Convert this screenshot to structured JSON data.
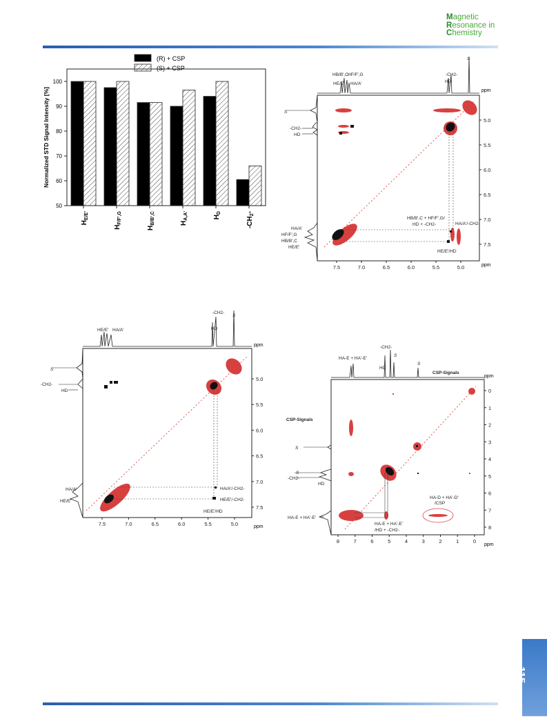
{
  "logo": {
    "line1": "Magnetic",
    "line2": "Resonance in",
    "line3": "Chemistry",
    "initials": [
      "M",
      "R",
      "C"
    ],
    "rest": [
      "agnetic",
      "esonance in",
      "hemistry"
    ]
  },
  "page_number": "115",
  "chart_data": [
    {
      "type": "bar",
      "title": "",
      "ylabel": "Normalized STD Signal Intensity [%]",
      "xlabel": "",
      "ylim": [
        50,
        105
      ],
      "yticks": [
        50,
        60,
        70,
        80,
        90,
        100
      ],
      "categories": [
        "H_E/E'",
        "H_F/F',G",
        "H_B/B',C",
        "H_A,A'",
        "H_D",
        "-CH2-"
      ],
      "category_labels": [
        {
          "main": "H",
          "sub": "E/E'"
        },
        {
          "main": "H",
          "sub": "F/F',G"
        },
        {
          "main": "H",
          "sub": "B/B',C"
        },
        {
          "main": "H",
          "sub": "A,A'"
        },
        {
          "main": "H",
          "sub": "D"
        },
        {
          "main": "-CH",
          "sub": "2",
          "tail": "-"
        }
      ],
      "legend_position": "top-center",
      "series": [
        {
          "name": "(R) + CSP",
          "fill": "#000000",
          "values": [
            100,
            97.5,
            91.5,
            90,
            94,
            60.5
          ]
        },
        {
          "name": "(S) + CSP",
          "fill": "hatched",
          "values": [
            100,
            100,
            91.5,
            96.5,
            100,
            66
          ]
        }
      ]
    }
  ],
  "nmr_top_right": {
    "axis_label": "ppm",
    "xticks": [
      "7.5",
      "7.0",
      "6.5",
      "6.0",
      "5.5",
      "5.0"
    ],
    "yticks": [
      "5.0",
      "5.5",
      "6.0",
      "6.5",
      "7.0",
      "7.5"
    ],
    "top_labels": [
      "S",
      "-CH2-",
      "HD",
      "HB/B',C",
      "HF/F',G",
      "HE/E'",
      "HA/A'"
    ],
    "left_labels": [
      "S",
      "-CH2-",
      "HD",
      "HA/A'",
      "HF/F',G",
      "HB/B',C",
      "HE/E'"
    ],
    "cross_labels": [
      "HB/B',C + HF/F',G/",
      "HD + -CH2-",
      "HA/A'/-CH2-",
      "HE/E'/HD"
    ]
  },
  "nmr_bottom_left": {
    "axis_label": "ppm",
    "xticks": [
      "7.5",
      "7.0",
      "6.5",
      "6.0",
      "5.5",
      "5.0"
    ],
    "yticks": [
      "5.0",
      "5.5",
      "6.0",
      "6.5",
      "7.0",
      "7.5"
    ],
    "top_labels": [
      "-CH2-",
      "S",
      "HD",
      "HE/E'",
      "HA/A'"
    ],
    "left_labels": [
      "S",
      "-CH2-",
      "HD",
      "HA/A'",
      "HE/E'"
    ],
    "cross_labels": [
      "HA/A'/-CH2-",
      "HE/E'/-CH2-",
      "HE/E'/HD"
    ]
  },
  "nmr_bottom_right": {
    "axis_label": "ppm",
    "xticks": [
      "8",
      "7",
      "6",
      "5",
      "4",
      "3",
      "2",
      "1",
      "0"
    ],
    "yticks": [
      "0",
      "1",
      "2",
      "3",
      "4",
      "5",
      "6",
      "7",
      "8"
    ],
    "top_labels": [
      "-CH2-",
      "S",
      "HA-E + HA'-E'",
      "HD",
      "S",
      "CSP-Signals"
    ],
    "left_labels": [
      "CSP-Signals",
      "S",
      "S",
      "-CH2-",
      "HD",
      "HA-E + HA'-E'"
    ],
    "cross_labels": [
      "HA-D + HA'-D'",
      "/CSP",
      "HA-E + HA'-E'",
      "/HD + -CH2-"
    ]
  }
}
